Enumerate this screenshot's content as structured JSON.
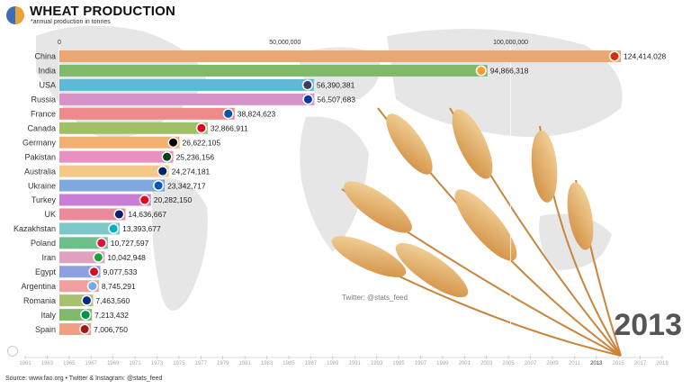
{
  "header": {
    "title": "WHEAT PRODUCTION",
    "subtitle": "*annual production in tonnes"
  },
  "watermark": "Twitter: @stats_feed",
  "source": "Source: www.fao.org • Twitter & Instagram: @stats_feed",
  "year": "2013",
  "chart_data": {
    "type": "bar",
    "orientation": "horizontal",
    "title": "WHEAT PRODUCTION",
    "subtitle": "*annual production in tonnes",
    "xlim": [
      0,
      124414028
    ],
    "x_ticks": [
      0,
      50000000,
      100000000
    ],
    "x_tick_labels": [
      "0",
      "50,000,000",
      "100,000,000"
    ],
    "categories": [
      "China",
      "India",
      "USA",
      "Russia",
      "France",
      "Canada",
      "Germany",
      "Pakistan",
      "Australia",
      "Ukraine",
      "Turkey",
      "UK",
      "Kazakhstan",
      "Poland",
      "Iran",
      "Egypt",
      "Argentina",
      "Romania",
      "Italy",
      "Spain"
    ],
    "values": [
      124414028,
      94866318,
      56390381,
      56507683,
      38824623,
      32866911,
      26622105,
      25236156,
      24274181,
      23342717,
      20282150,
      14636667,
      13393677,
      10727597,
      10042948,
      9077533,
      8745291,
      7463560,
      7213432,
      7006750
    ],
    "value_labels": [
      "124,414,028",
      "94,866,318",
      "56,390,381",
      "56,507,683",
      "38,824,623",
      "32,866,911",
      "26,622,105",
      "25,236,156",
      "24,274,181",
      "23,342,717",
      "20,282,150",
      "14,636,667",
      "13,393,677",
      "10,727,597",
      "10,042,948",
      "9,077,533",
      "8,745,291",
      "7,463,560",
      "7,213,432",
      "7,006,750"
    ],
    "colors": [
      "#e8a774",
      "#80b96a",
      "#5fb9d6",
      "#d693c9",
      "#ee8a8a",
      "#9fc066",
      "#f0b06f",
      "#e890c0",
      "#f5c88a",
      "#7fa8df",
      "#c97ed6",
      "#e88a9a",
      "#7fc6c8",
      "#6fbf8a",
      "#e0a0c0",
      "#8fa0e0",
      "#f0a0a0",
      "#a8c070",
      "#80b96a",
      "#f0a080"
    ],
    "flags": [
      "china-flag",
      "india-flag",
      "usa-flag",
      "russia-flag",
      "france-flag",
      "canada-flag",
      "germany-flag",
      "pakistan-flag",
      "australia-flag",
      "ukraine-flag",
      "turkey-flag",
      "uk-flag",
      "kazakhstan-flag",
      "poland-flag",
      "iran-flag",
      "egypt-flag",
      "argentina-flag",
      "romania-flag",
      "italy-flag",
      "spain-flag"
    ],
    "timeline": {
      "labels": [
        "1961",
        "1963",
        "1965",
        "1967",
        "1969",
        "1971",
        "1973",
        "1975",
        "1977",
        "1979",
        "1981",
        "1983",
        "1985",
        "1987",
        "1989",
        "1991",
        "1993",
        "1995",
        "1997",
        "1999",
        "2001",
        "2003",
        "2005",
        "2007",
        "2009",
        "2011",
        "2013",
        "2015",
        "2017",
        "2019"
      ],
      "current": "2013"
    }
  }
}
